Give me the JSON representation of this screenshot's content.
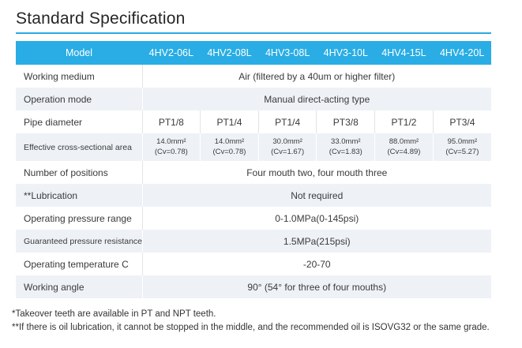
{
  "title": "Standard Specification",
  "colors": {
    "header_blue": "#29ade4",
    "row_alt_background": "#eef2f7",
    "title_underline": "#2ba8e0"
  },
  "table": {
    "header": {
      "model_label": "Model",
      "models": [
        "4HV2-06L",
        "4HV2-08L",
        "4HV3-08L",
        "4HV3-10L",
        "4HV4-15L",
        "4HV4-20L"
      ]
    },
    "rows": [
      {
        "label": "Working medium",
        "value": "Air (filtered by a 40um or higher filter)"
      },
      {
        "label": "Operation mode",
        "value": "Manual direct-acting type"
      },
      {
        "label": "Pipe diameter",
        "values": [
          "PT1/8",
          "PT1/4",
          "PT1/4",
          "PT3/8",
          "PT1/2",
          "PT3/4"
        ]
      },
      {
        "label": "Effective cross-sectional area",
        "values": [
          {
            "area": "14.0mm²",
            "cv": "(Cv=0.78)"
          },
          {
            "area": "14.0mm²",
            "cv": "(Cv=0.78)"
          },
          {
            "area": "30.0mm²",
            "cv": "(Cv=1.67)"
          },
          {
            "area": "33.0mm²",
            "cv": "(Cv=1.83)"
          },
          {
            "area": "88.0mm²",
            "cv": "(Cv=4.89)"
          },
          {
            "area": "95.0mm²",
            "cv": "(Cv=5.27)"
          }
        ]
      },
      {
        "label": "Number of positions",
        "value": "Four mouth two, four mouth three"
      },
      {
        "label": "**Lubrication",
        "value": "Not required"
      },
      {
        "label": "Operating pressure range",
        "value": "0-1.0MPa(0-145psi)"
      },
      {
        "label": "Guaranteed pressure resistance",
        "value": "1.5MPa(215psi)"
      },
      {
        "label": "Operating temperature C",
        "value": "-20-70"
      },
      {
        "label": "Working angle",
        "value": "90° (54° for three of four mouths)"
      }
    ]
  },
  "footnotes": [
    "*Takeover teeth are available in PT and NPT teeth.",
    "**If there is oil lubrication, it cannot be stopped in the middle, and the recommended oil is ISOVG32 or the same grade."
  ]
}
